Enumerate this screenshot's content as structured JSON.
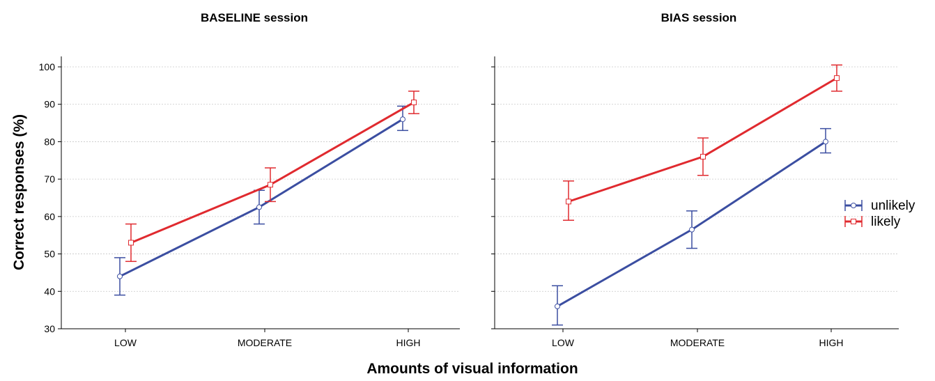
{
  "chart_data": {
    "type": "line",
    "xlabel": "Amounts of visual information",
    "ylabel": "Correct responses (%)",
    "categories": [
      "LOW",
      "MODERATE",
      "HIGH"
    ],
    "ylim": [
      30,
      103
    ],
    "yticks": [
      "30",
      "40",
      "50",
      "60",
      "70",
      "80",
      "90",
      "100"
    ],
    "grid": true,
    "error_bars": true,
    "legend": {
      "placement": "right",
      "entries": [
        {
          "name": "unlikely",
          "color": "#3b4ea1"
        },
        {
          "name": "likely",
          "color": "#e02a2f"
        }
      ]
    },
    "panels": [
      {
        "title": "BASELINE session",
        "series": [
          {
            "name": "unlikely",
            "color": "#3b4ea1",
            "values": [
              44,
              62.5,
              86
            ],
            "lower": [
              39,
              58,
              83
            ],
            "upper": [
              49,
              67,
              89.5
            ]
          },
          {
            "name": "likely",
            "color": "#e02a2f",
            "values": [
              53,
              68.5,
              90.5
            ],
            "lower": [
              48,
              64,
              87.5
            ],
            "upper": [
              58,
              73,
              93.5
            ]
          }
        ]
      },
      {
        "title": "BIAS session",
        "series": [
          {
            "name": "unlikely",
            "color": "#3b4ea1",
            "values": [
              36,
              56.5,
              80
            ],
            "lower": [
              31,
              51.5,
              77
            ],
            "upper": [
              41.5,
              61.5,
              83.5
            ]
          },
          {
            "name": "likely",
            "color": "#e02a2f",
            "values": [
              64,
              76,
              97
            ],
            "lower": [
              59,
              71,
              93.5
            ],
            "upper": [
              69.5,
              81,
              100.5
            ]
          }
        ]
      }
    ]
  }
}
